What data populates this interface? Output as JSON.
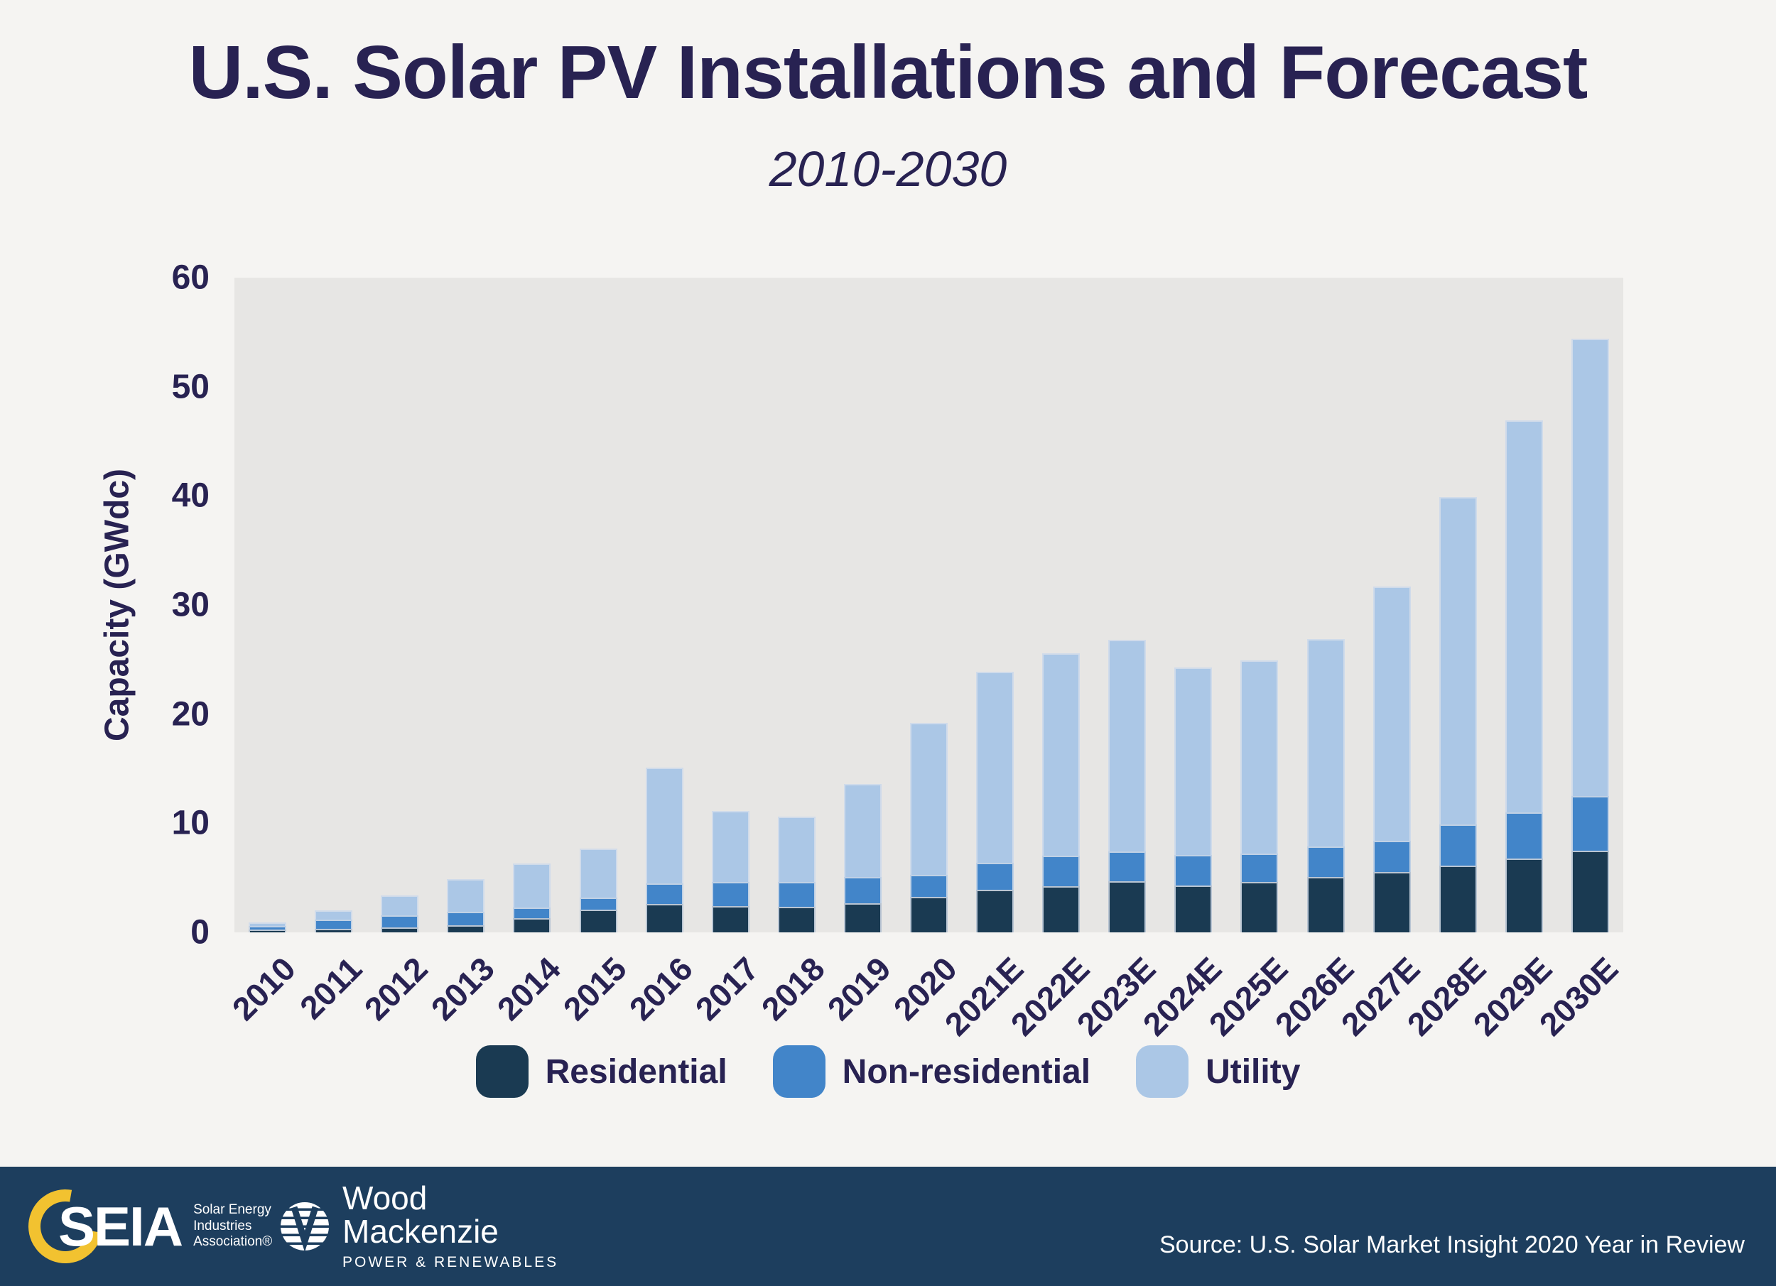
{
  "page": {
    "title": "U.S. Solar PV Installations and Forecast",
    "subtitle": "2010-2030"
  },
  "chart_data": {
    "type": "bar",
    "stacked": true,
    "title": "U.S. Solar PV Installations and Forecast",
    "subtitle": "2010-2030",
    "ylabel": "Capacity (GWdc)",
    "ylim": [
      0,
      60
    ],
    "yticks": [
      0,
      10,
      20,
      30,
      40,
      50,
      60
    ],
    "grid": false,
    "legend_position": "bottom",
    "plot_background": "#e7e6e4",
    "categories": [
      "2010",
      "2011",
      "2012",
      "2013",
      "2014",
      "2015",
      "2016",
      "2017",
      "2018",
      "2019",
      "2020",
      "2021E",
      "2022E",
      "2023E",
      "2024E",
      "2025E",
      "2026E",
      "2027E",
      "2028E",
      "2029E",
      "2030E"
    ],
    "series": [
      {
        "name": "Residential",
        "color": "#1a3a52",
        "values": [
          0.25,
          0.3,
          0.45,
          0.65,
          1.3,
          2.1,
          2.6,
          2.4,
          2.35,
          2.7,
          3.25,
          3.9,
          4.2,
          4.7,
          4.3,
          4.6,
          5.1,
          5.5,
          6.1,
          6.8,
          7.5
        ]
      },
      {
        "name": "Non-residential",
        "color": "#4285c9",
        "values": [
          0.35,
          0.85,
          1.1,
          1.25,
          1.0,
          1.1,
          1.9,
          2.2,
          2.3,
          2.4,
          2.05,
          2.5,
          2.8,
          2.7,
          2.8,
          2.6,
          2.8,
          2.9,
          3.8,
          4.2,
          5.0
        ]
      },
      {
        "name": "Utility",
        "color": "#abc7e6",
        "values": [
          0.3,
          0.85,
          1.85,
          3.0,
          4.0,
          4.5,
          10.6,
          6.5,
          5.95,
          8.5,
          13.9,
          17.5,
          18.6,
          19.4,
          17.2,
          17.7,
          19.0,
          23.3,
          30.0,
          35.9,
          41.9
        ]
      }
    ],
    "totals": [
      0.9,
      2.0,
      3.4,
      4.9,
      6.3,
      7.7,
      15.1,
      11.1,
      10.6,
      13.6,
      19.2,
      23.9,
      25.6,
      26.8,
      24.3,
      24.9,
      26.9,
      31.7,
      39.9,
      46.9,
      54.4
    ]
  },
  "colors": {
    "text_navy": "#282252",
    "footer_background": "#1d3e5e",
    "page_background": "#f5f4f2",
    "seia_yellow": "#f2c230"
  },
  "footer": {
    "seia": {
      "abbr": "SEIA",
      "line1": "Solar Energy",
      "line2": "Industries",
      "line3": "Association®"
    },
    "woodmac": {
      "name_line1": "Wood",
      "name_line2": "Mackenzie",
      "tagline": "POWER & RENEWABLES"
    },
    "source": "Source: U.S. Solar Market Insight 2020 Year in Review"
  }
}
